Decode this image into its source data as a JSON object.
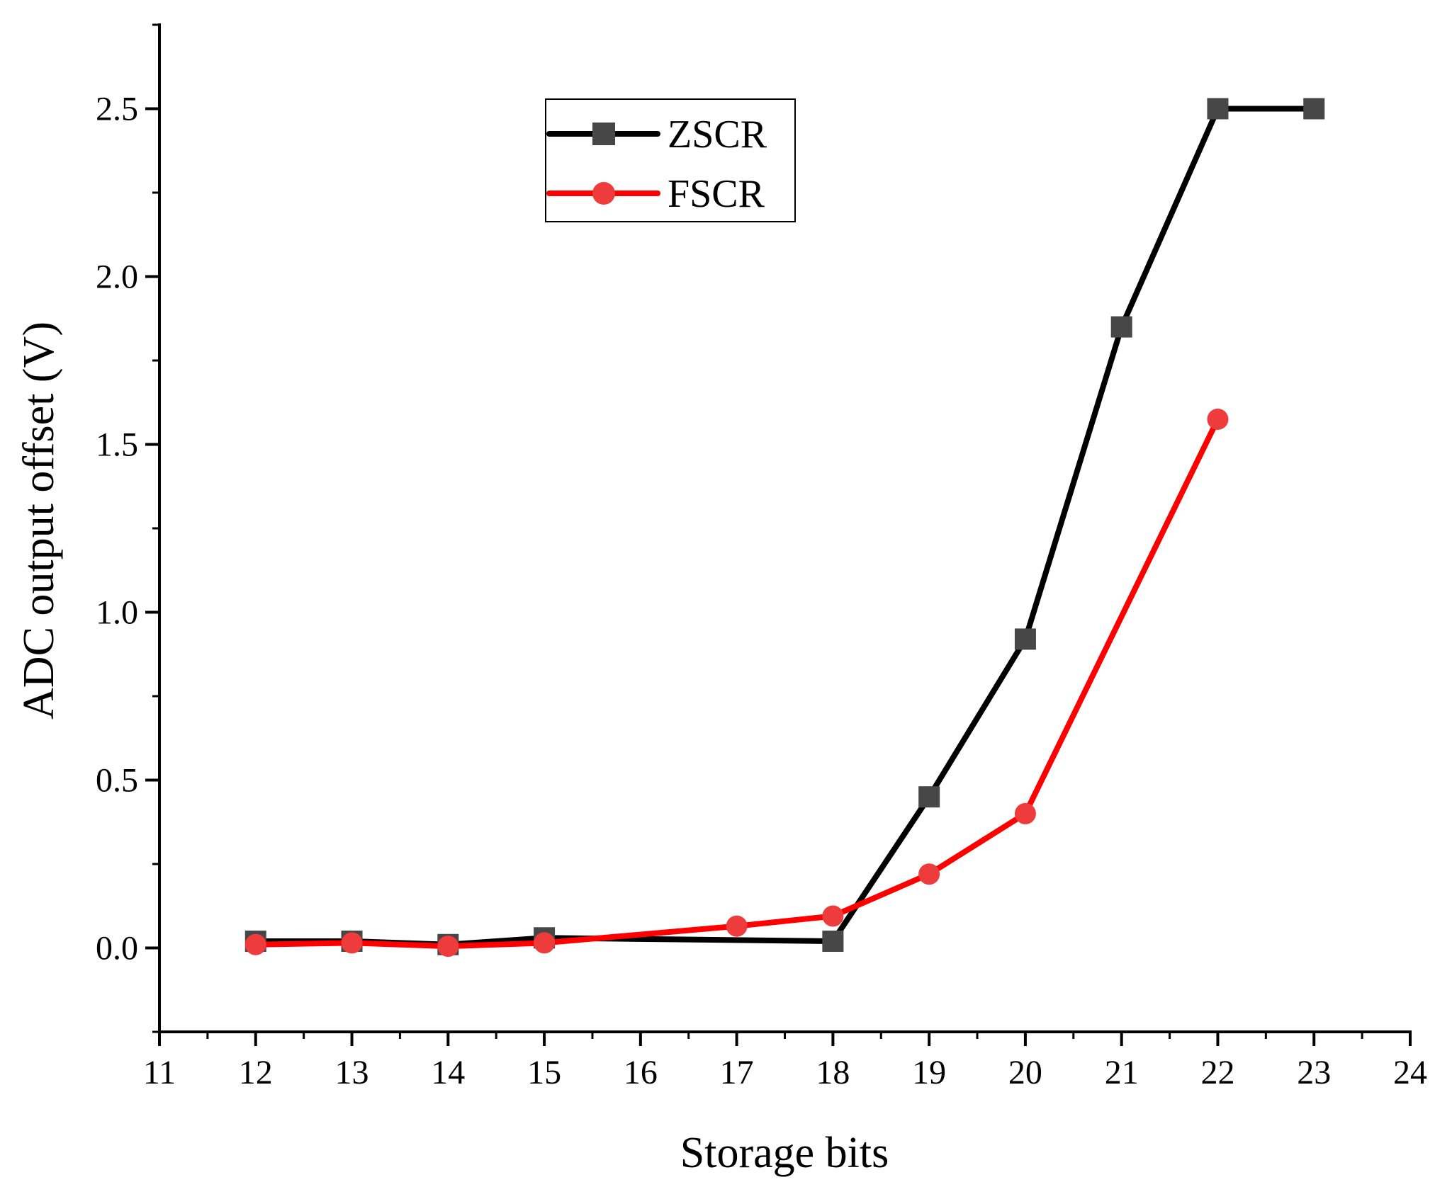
{
  "chart_data": {
    "type": "line",
    "title": "",
    "xlabel": "Storage bits",
    "ylabel": "ADC output offset (V)",
    "xlim": [
      11,
      24
    ],
    "ylim": [
      -0.25,
      2.75
    ],
    "x_ticks": [
      11,
      12,
      13,
      14,
      15,
      16,
      17,
      18,
      19,
      20,
      21,
      22,
      23,
      24
    ],
    "y_ticks": [
      0.0,
      0.5,
      1.0,
      1.5,
      2.0,
      2.5
    ],
    "x_tick_labels": [
      "11",
      "12",
      "13",
      "14",
      "15",
      "16",
      "17",
      "18",
      "19",
      "20",
      "21",
      "22",
      "23",
      "24"
    ],
    "y_tick_labels": [
      "0.0",
      "0.5",
      "1.0",
      "1.5",
      "2.0",
      "2.5"
    ],
    "grid": false,
    "legend_position": "top-center",
    "series": [
      {
        "name": "ZSCR",
        "color": "#000000",
        "marker_color": "#474747",
        "marker": "square",
        "x": [
          12,
          13,
          14,
          15,
          18,
          19,
          20,
          21,
          22,
          23
        ],
        "y": [
          0.02,
          0.02,
          0.01,
          0.03,
          0.02,
          0.45,
          0.92,
          1.85,
          2.5,
          2.5
        ]
      },
      {
        "name": "FSCR",
        "color": "#ff0000",
        "marker_color": "#ee3b3b",
        "marker": "circle",
        "x": [
          12,
          13,
          14,
          15,
          17,
          18,
          19,
          20,
          22
        ],
        "y": [
          0.01,
          0.015,
          0.005,
          0.015,
          0.065,
          0.095,
          0.22,
          0.4,
          1.575
        ]
      }
    ]
  }
}
